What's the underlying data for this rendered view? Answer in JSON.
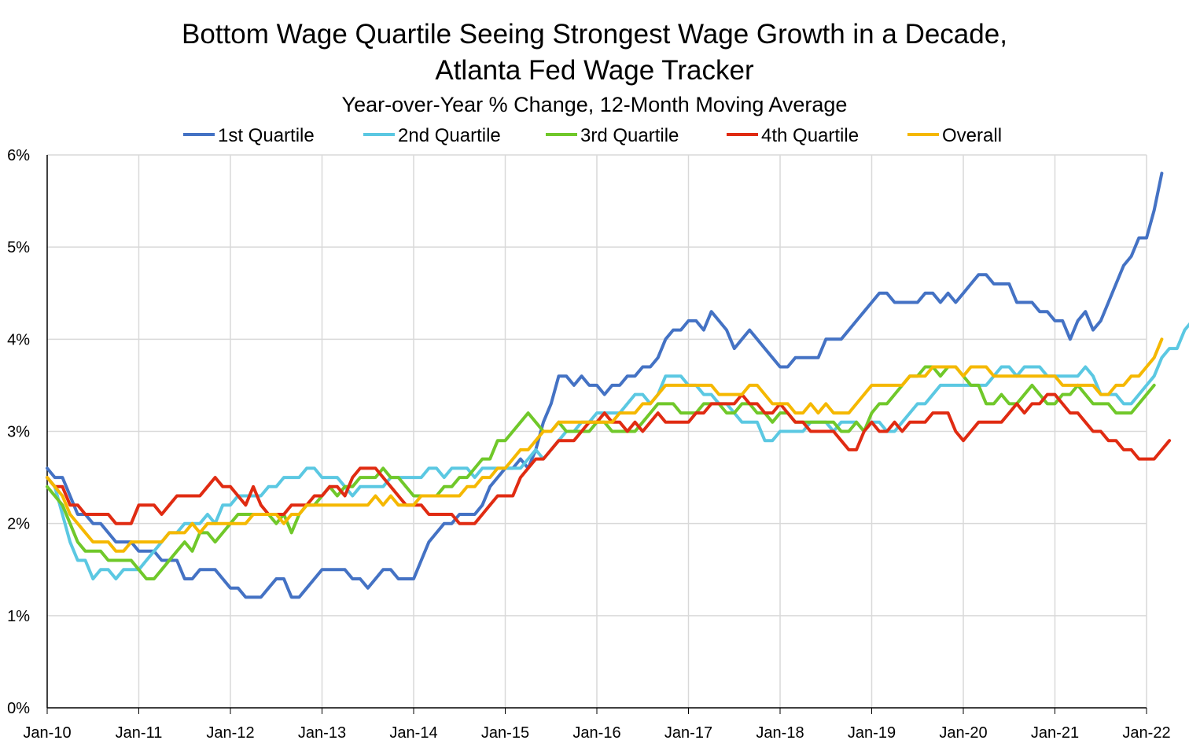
{
  "chart_data": {
    "type": "line",
    "title": "Bottom Wage Quartile Seeing Strongest Wage Growth in a Decade,",
    "title_line2": "Atlanta Fed Wage Tracker",
    "subtitle": "Year-over-Year % Change, 12-Month Moving Average",
    "xlabel": "",
    "ylabel": "",
    "ylim": [
      0,
      6
    ],
    "yticks": [
      "0%",
      "1%",
      "2%",
      "3%",
      "4%",
      "5%",
      "6%"
    ],
    "xticks": [
      "Jan-10",
      "Jan-11",
      "Jan-12",
      "Jan-13",
      "Jan-14",
      "Jan-15",
      "Jan-16",
      "Jan-17",
      "Jan-18",
      "Jan-19",
      "Jan-20",
      "Jan-21",
      "Jan-22"
    ],
    "x_start": "Jan-10",
    "x_end": "Jan-22",
    "grid": true,
    "legend_position": "top",
    "series": [
      {
        "name": "1st Quartile",
        "color": "#4472c4",
        "values": [
          2.6,
          2.5,
          2.5,
          2.3,
          2.1,
          2.1,
          2.0,
          2.0,
          1.9,
          1.8,
          1.8,
          1.8,
          1.7,
          1.7,
          1.7,
          1.6,
          1.6,
          1.6,
          1.4,
          1.4,
          1.5,
          1.5,
          1.5,
          1.4,
          1.3,
          1.3,
          1.2,
          1.2,
          1.2,
          1.3,
          1.4,
          1.4,
          1.2,
          1.2,
          1.3,
          1.4,
          1.5,
          1.5,
          1.5,
          1.5,
          1.4,
          1.4,
          1.3,
          1.4,
          1.5,
          1.5,
          1.4,
          1.4,
          1.4,
          1.6,
          1.8,
          1.9,
          2.0,
          2.0,
          2.1,
          2.1,
          2.1,
          2.2,
          2.4,
          2.5,
          2.6,
          2.6,
          2.7,
          2.6,
          2.8,
          3.1,
          3.3,
          3.6,
          3.6,
          3.5,
          3.6,
          3.5,
          3.5,
          3.4,
          3.5,
          3.5,
          3.6,
          3.6,
          3.7,
          3.7,
          3.8,
          4.0,
          4.1,
          4.1,
          4.2,
          4.2,
          4.1,
          4.3,
          4.2,
          4.1,
          3.9,
          4.0,
          4.1,
          4.0,
          3.9,
          3.8,
          3.7,
          3.7,
          3.8,
          3.8,
          3.8,
          3.8,
          4.0,
          4.0,
          4.0,
          4.1,
          4.2,
          4.3,
          4.4,
          4.5,
          4.5,
          4.4,
          4.4,
          4.4,
          4.4,
          4.5,
          4.5,
          4.4,
          4.5,
          4.4,
          4.5,
          4.6,
          4.7,
          4.7,
          4.6,
          4.6,
          4.6,
          4.4,
          4.4,
          4.4,
          4.3,
          4.3,
          4.2,
          4.2,
          4.0,
          4.2,
          4.3,
          4.1,
          4.2,
          4.4,
          4.6,
          4.8,
          4.9,
          5.1,
          5.1,
          5.4,
          5.8
        ]
      },
      {
        "name": "2nd Quartile",
        "color": "#5bc8e2",
        "values": [
          2.5,
          2.4,
          2.1,
          1.8,
          1.6,
          1.6,
          1.4,
          1.5,
          1.5,
          1.4,
          1.5,
          1.5,
          1.5,
          1.6,
          1.7,
          1.8,
          1.9,
          1.9,
          2.0,
          2.0,
          2.0,
          2.1,
          2.0,
          2.2,
          2.2,
          2.3,
          2.3,
          2.3,
          2.3,
          2.4,
          2.4,
          2.5,
          2.5,
          2.5,
          2.6,
          2.6,
          2.5,
          2.5,
          2.5,
          2.4,
          2.3,
          2.4,
          2.4,
          2.4,
          2.4,
          2.5,
          2.5,
          2.5,
          2.5,
          2.5,
          2.6,
          2.6,
          2.5,
          2.6,
          2.6,
          2.6,
          2.5,
          2.6,
          2.6,
          2.6,
          2.6,
          2.6,
          2.6,
          2.7,
          2.8,
          2.7,
          2.8,
          2.9,
          3.0,
          3.0,
          3.1,
          3.1,
          3.2,
          3.2,
          3.2,
          3.2,
          3.3,
          3.4,
          3.4,
          3.3,
          3.4,
          3.6,
          3.6,
          3.6,
          3.5,
          3.5,
          3.4,
          3.4,
          3.3,
          3.3,
          3.2,
          3.1,
          3.1,
          3.1,
          2.9,
          2.9,
          3.0,
          3.0,
          3.0,
          3.0,
          3.1,
          3.1,
          3.1,
          3.0,
          3.1,
          3.1,
          3.1,
          3.0,
          3.1,
          3.1,
          3.0,
          3.0,
          3.1,
          3.2,
          3.3,
          3.3,
          3.4,
          3.5,
          3.5,
          3.5,
          3.5,
          3.5,
          3.5,
          3.5,
          3.6,
          3.7,
          3.7,
          3.6,
          3.7,
          3.7,
          3.7,
          3.6,
          3.6,
          3.6,
          3.6,
          3.6,
          3.7,
          3.6,
          3.4,
          3.4,
          3.4,
          3.3,
          3.3,
          3.4,
          3.5,
          3.6,
          3.8,
          3.9,
          3.9,
          4.1,
          4.2
        ]
      },
      {
        "name": "3rd Quartile",
        "color": "#70c82a",
        "values": [
          2.4,
          2.3,
          2.2,
          2.0,
          1.8,
          1.7,
          1.7,
          1.7,
          1.6,
          1.6,
          1.6,
          1.6,
          1.5,
          1.4,
          1.4,
          1.5,
          1.6,
          1.7,
          1.8,
          1.7,
          1.9,
          1.9,
          1.8,
          1.9,
          2.0,
          2.1,
          2.1,
          2.1,
          2.1,
          2.1,
          2.0,
          2.1,
          1.9,
          2.1,
          2.2,
          2.2,
          2.3,
          2.4,
          2.3,
          2.4,
          2.4,
          2.5,
          2.5,
          2.5,
          2.6,
          2.5,
          2.5,
          2.4,
          2.3,
          2.3,
          2.3,
          2.3,
          2.4,
          2.4,
          2.5,
          2.5,
          2.6,
          2.7,
          2.7,
          2.9,
          2.9,
          3.0,
          3.1,
          3.2,
          3.1,
          3.0,
          3.0,
          3.1,
          3.0,
          3.0,
          3.0,
          3.0,
          3.1,
          3.1,
          3.0,
          3.0,
          3.0,
          3.0,
          3.1,
          3.2,
          3.3,
          3.3,
          3.3,
          3.2,
          3.2,
          3.2,
          3.3,
          3.3,
          3.3,
          3.2,
          3.2,
          3.3,
          3.3,
          3.2,
          3.2,
          3.1,
          3.2,
          3.2,
          3.1,
          3.1,
          3.1,
          3.1,
          3.1,
          3.1,
          3.0,
          3.0,
          3.1,
          3.0,
          3.2,
          3.3,
          3.3,
          3.4,
          3.5,
          3.6,
          3.6,
          3.7,
          3.7,
          3.6,
          3.7,
          3.7,
          3.6,
          3.5,
          3.5,
          3.3,
          3.3,
          3.4,
          3.3,
          3.3,
          3.4,
          3.5,
          3.4,
          3.3,
          3.3,
          3.4,
          3.4,
          3.5,
          3.4,
          3.3,
          3.3,
          3.3,
          3.2,
          3.2,
          3.2,
          3.3,
          3.4,
          3.5
        ]
      },
      {
        "name": "4th Quartile",
        "color": "#e02b12",
        "values": [
          2.5,
          2.4,
          2.4,
          2.2,
          2.2,
          2.1,
          2.1,
          2.1,
          2.1,
          2.0,
          2.0,
          2.0,
          2.2,
          2.2,
          2.2,
          2.1,
          2.2,
          2.3,
          2.3,
          2.3,
          2.3,
          2.4,
          2.5,
          2.4,
          2.4,
          2.3,
          2.2,
          2.4,
          2.2,
          2.1,
          2.1,
          2.1,
          2.2,
          2.2,
          2.2,
          2.3,
          2.3,
          2.4,
          2.4,
          2.3,
          2.5,
          2.6,
          2.6,
          2.6,
          2.5,
          2.4,
          2.3,
          2.2,
          2.2,
          2.2,
          2.1,
          2.1,
          2.1,
          2.1,
          2.0,
          2.0,
          2.0,
          2.1,
          2.2,
          2.3,
          2.3,
          2.3,
          2.5,
          2.6,
          2.7,
          2.7,
          2.8,
          2.9,
          2.9,
          2.9,
          3.0,
          3.1,
          3.1,
          3.2,
          3.1,
          3.1,
          3.0,
          3.1,
          3.0,
          3.1,
          3.2,
          3.1,
          3.1,
          3.1,
          3.1,
          3.2,
          3.2,
          3.3,
          3.3,
          3.3,
          3.3,
          3.4,
          3.3,
          3.3,
          3.2,
          3.2,
          3.3,
          3.2,
          3.1,
          3.1,
          3.0,
          3.0,
          3.0,
          3.0,
          2.9,
          2.8,
          2.8,
          3.0,
          3.1,
          3.0,
          3.0,
          3.1,
          3.0,
          3.1,
          3.1,
          3.1,
          3.2,
          3.2,
          3.2,
          3.0,
          2.9,
          3.0,
          3.1,
          3.1,
          3.1,
          3.1,
          3.2,
          3.3,
          3.2,
          3.3,
          3.3,
          3.4,
          3.4,
          3.3,
          3.2,
          3.2,
          3.1,
          3.0,
          3.0,
          2.9,
          2.9,
          2.8,
          2.8,
          2.7,
          2.7,
          2.7,
          2.8,
          2.9
        ]
      },
      {
        "name": "Overall",
        "color": "#f5b800",
        "values": [
          2.5,
          2.4,
          2.3,
          2.1,
          2.0,
          1.9,
          1.8,
          1.8,
          1.8,
          1.7,
          1.7,
          1.8,
          1.8,
          1.8,
          1.8,
          1.8,
          1.9,
          1.9,
          1.9,
          2.0,
          1.9,
          2.0,
          2.0,
          2.0,
          2.0,
          2.0,
          2.0,
          2.1,
          2.1,
          2.1,
          2.1,
          2.0,
          2.1,
          2.1,
          2.2,
          2.2,
          2.2,
          2.2,
          2.2,
          2.2,
          2.2,
          2.2,
          2.2,
          2.3,
          2.2,
          2.3,
          2.2,
          2.2,
          2.2,
          2.3,
          2.3,
          2.3,
          2.3,
          2.3,
          2.3,
          2.4,
          2.4,
          2.5,
          2.5,
          2.6,
          2.6,
          2.7,
          2.8,
          2.8,
          2.9,
          3.0,
          3.0,
          3.1,
          3.1,
          3.1,
          3.1,
          3.1,
          3.1,
          3.1,
          3.1,
          3.2,
          3.2,
          3.2,
          3.3,
          3.3,
          3.4,
          3.5,
          3.5,
          3.5,
          3.5,
          3.5,
          3.5,
          3.5,
          3.4,
          3.4,
          3.4,
          3.4,
          3.5,
          3.5,
          3.4,
          3.3,
          3.3,
          3.3,
          3.2,
          3.2,
          3.3,
          3.2,
          3.3,
          3.2,
          3.2,
          3.2,
          3.3,
          3.4,
          3.5,
          3.5,
          3.5,
          3.5,
          3.5,
          3.6,
          3.6,
          3.6,
          3.7,
          3.7,
          3.7,
          3.7,
          3.6,
          3.7,
          3.7,
          3.7,
          3.6,
          3.6,
          3.6,
          3.6,
          3.6,
          3.6,
          3.6,
          3.6,
          3.6,
          3.5,
          3.5,
          3.5,
          3.5,
          3.5,
          3.4,
          3.4,
          3.5,
          3.5,
          3.6,
          3.6,
          3.7,
          3.8,
          4.0
        ]
      }
    ]
  }
}
